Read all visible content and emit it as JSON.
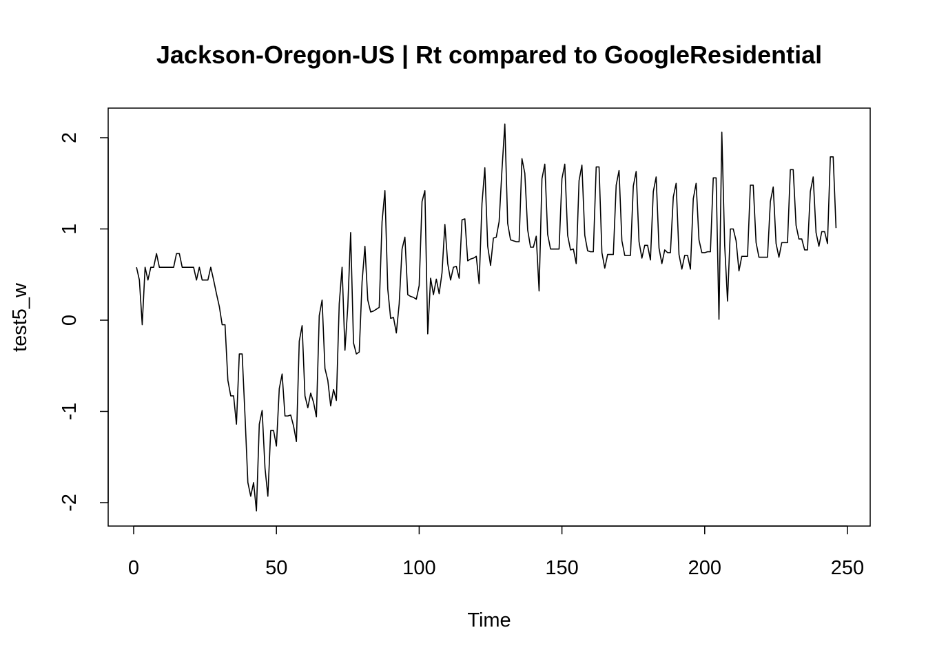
{
  "chart_data": {
    "type": "line",
    "title": "Jackson-Oregon-US | Rt compared to GoogleResidential",
    "xlabel": "Time",
    "ylabel": "test5_w",
    "xlim": [
      1,
      248
    ],
    "ylim": [
      -2.1,
      2.15
    ],
    "xticks": [
      0,
      50,
      100,
      150,
      200,
      250
    ],
    "yticks": [
      -2,
      -1,
      0,
      1,
      2
    ],
    "grid": false,
    "legend": "none",
    "line_color": "#000000",
    "x_start": 1,
    "x_step": 1,
    "values": [
      0.58,
      0.44,
      -0.05,
      0.58,
      0.44,
      0.58,
      0.58,
      0.73,
      0.58,
      0.58,
      0.58,
      0.58,
      0.58,
      0.58,
      0.73,
      0.73,
      0.58,
      0.58,
      0.58,
      0.58,
      0.58,
      0.44,
      0.58,
      0.44,
      0.44,
      0.44,
      0.58,
      0.44,
      0.29,
      0.15,
      -0.05,
      -0.05,
      -0.66,
      -0.83,
      -0.83,
      -1.14,
      -0.37,
      -0.37,
      -1.05,
      -1.78,
      -1.93,
      -1.78,
      -2.09,
      -1.14,
      -0.99,
      -1.62,
      -1.93,
      -1.21,
      -1.21,
      -1.38,
      -0.75,
      -0.59,
      -1.05,
      -1.05,
      -1.04,
      -1.16,
      -1.33,
      -0.23,
      -0.06,
      -0.83,
      -0.96,
      -0.8,
      -0.9,
      -1.06,
      0.05,
      0.22,
      -0.53,
      -0.66,
      -0.94,
      -0.76,
      -0.88,
      0.18,
      0.58,
      -0.33,
      0.15,
      0.96,
      -0.25,
      -0.37,
      -0.35,
      0.42,
      0.81,
      0.22,
      0.09,
      0.1,
      0.12,
      0.14,
      1.08,
      1.42,
      0.34,
      0.02,
      0.03,
      -0.14,
      0.18,
      0.78,
      0.91,
      0.28,
      0.26,
      0.25,
      0.23,
      0.38,
      1.3,
      1.42,
      -0.15,
      0.46,
      0.28,
      0.45,
      0.29,
      0.52,
      1.05,
      0.62,
      0.44,
      0.58,
      0.59,
      0.46,
      1.1,
      1.11,
      0.65,
      0.67,
      0.68,
      0.7,
      0.4,
      1.28,
      1.67,
      0.81,
      0.6,
      0.9,
      0.91,
      1.08,
      1.65,
      2.15,
      1.06,
      0.88,
      0.87,
      0.86,
      0.86,
      1.77,
      1.61,
      0.99,
      0.8,
      0.8,
      0.92,
      0.32,
      1.55,
      1.71,
      0.94,
      0.78,
      0.78,
      0.78,
      0.78,
      1.55,
      1.71,
      0.93,
      0.77,
      0.78,
      0.62,
      1.53,
      1.7,
      0.93,
      0.76,
      0.75,
      0.75,
      1.68,
      1.68,
      0.74,
      0.57,
      0.72,
      0.72,
      0.72,
      1.48,
      1.64,
      0.87,
      0.71,
      0.71,
      0.71,
      1.47,
      1.63,
      0.86,
      0.68,
      0.82,
      0.82,
      0.66,
      1.41,
      1.57,
      0.79,
      0.62,
      0.77,
      0.74,
      0.74,
      1.35,
      1.5,
      0.72,
      0.56,
      0.71,
      0.71,
      0.56,
      1.33,
      1.5,
      0.88,
      0.74,
      0.74,
      0.75,
      0.75,
      1.56,
      1.56,
      0.01,
      2.06,
      0.82,
      0.21,
      1.0,
      1.0,
      0.87,
      0.54,
      0.7,
      0.7,
      0.7,
      1.48,
      1.48,
      0.85,
      0.69,
      0.69,
      0.69,
      0.69,
      1.3,
      1.46,
      0.84,
      0.69,
      0.85,
      0.85,
      0.85,
      1.65,
      1.65,
      1.04,
      0.89,
      0.89,
      0.77,
      0.77,
      1.41,
      1.57,
      0.96,
      0.81,
      0.97,
      0.97,
      0.84,
      1.79,
      1.79,
      1.01
    ]
  }
}
